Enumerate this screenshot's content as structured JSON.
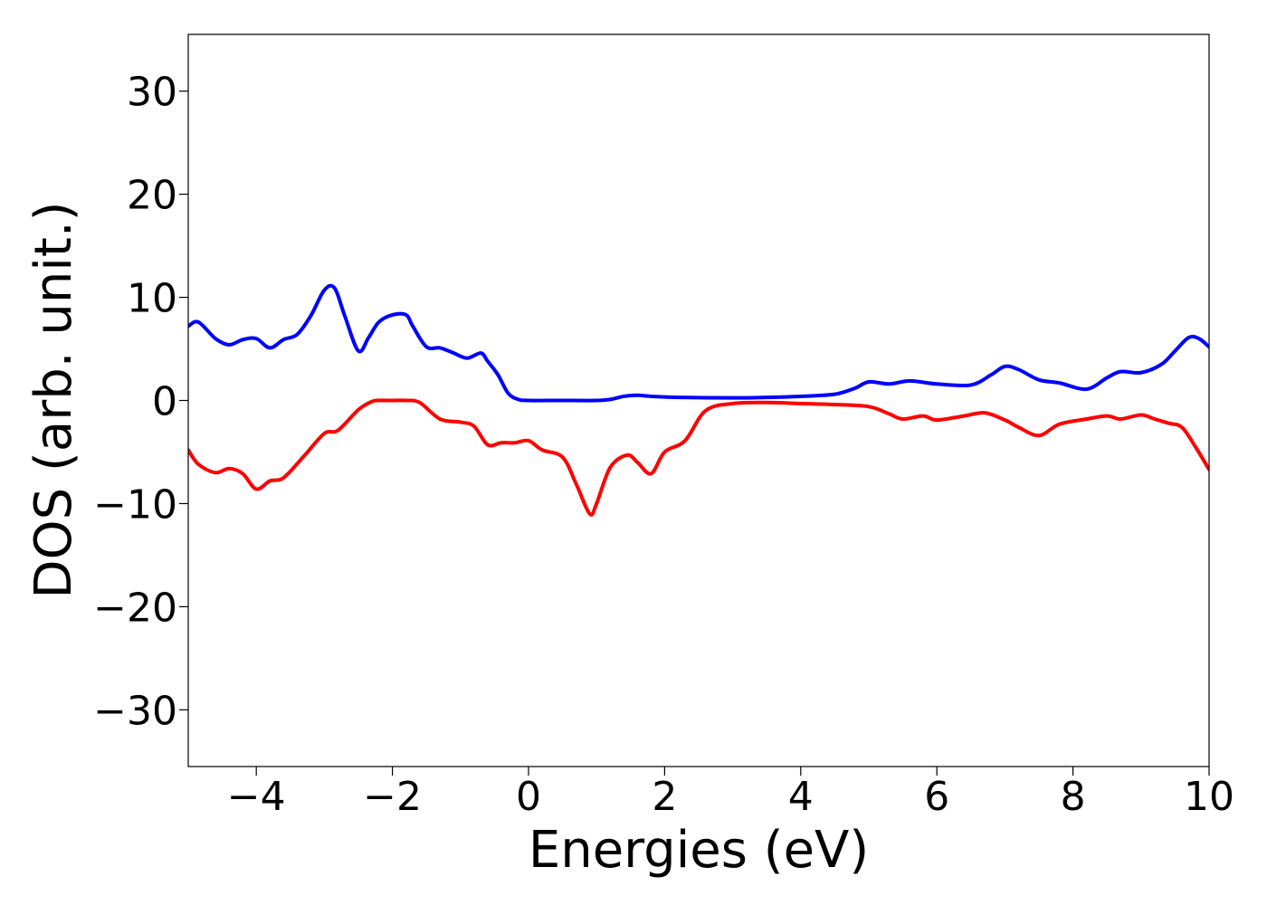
{
  "chart_data": {
    "type": "line",
    "title": "",
    "xlabel": "Energies (eV)",
    "ylabel": "DOS (arb. unit.)",
    "xlim": [
      -5,
      10
    ],
    "ylim": [
      -35.5,
      35.5
    ],
    "grid": false,
    "legend": "none",
    "x_ticks": [
      -4,
      -2,
      0,
      2,
      4,
      6,
      8,
      10
    ],
    "x_tick_labels": [
      "−4",
      "−2",
      "0",
      "2",
      "4",
      "6",
      "8",
      "10"
    ],
    "y_ticks": [
      30,
      20,
      10,
      0,
      -10,
      -20,
      -30
    ],
    "y_tick_labels": [
      "30",
      "20",
      "10",
      "0",
      "−10",
      "−20",
      "−30"
    ],
    "series": [
      {
        "color": "#0000ff",
        "x": [
          -5.0,
          -4.85,
          -4.6,
          -4.4,
          -4.2,
          -4.0,
          -3.8,
          -3.6,
          -3.4,
          -3.2,
          -3.0,
          -2.85,
          -2.7,
          -2.5,
          -2.35,
          -2.2,
          -2.0,
          -1.8,
          -1.7,
          -1.5,
          -1.3,
          -1.1,
          -0.9,
          -0.7,
          -0.6,
          -0.45,
          -0.3,
          -0.15,
          0.0,
          0.5,
          1.0,
          1.2,
          1.4,
          1.6,
          1.8,
          2.2,
          3.0,
          3.5,
          4.0,
          4.5,
          4.8,
          5.0,
          5.3,
          5.6,
          6.0,
          6.5,
          6.8,
          7.0,
          7.2,
          7.5,
          7.8,
          8.2,
          8.5,
          8.7,
          9.0,
          9.3,
          9.5,
          9.7,
          9.85,
          10.0
        ],
        "y": [
          7.2,
          7.6,
          6.0,
          5.4,
          5.9,
          6.0,
          5.1,
          5.9,
          6.4,
          8.2,
          10.7,
          10.9,
          8.2,
          4.8,
          6.1,
          7.6,
          8.3,
          8.3,
          7.2,
          5.2,
          5.1,
          4.6,
          4.1,
          4.6,
          3.8,
          2.5,
          0.7,
          0.1,
          0.0,
          0.0,
          0.0,
          0.1,
          0.4,
          0.5,
          0.4,
          0.3,
          0.25,
          0.3,
          0.4,
          0.6,
          1.2,
          1.8,
          1.6,
          1.9,
          1.6,
          1.5,
          2.5,
          3.3,
          3.0,
          2.0,
          1.7,
          1.1,
          2.2,
          2.8,
          2.7,
          3.5,
          4.8,
          6.1,
          6.0,
          5.2
        ]
      },
      {
        "color": "#ff0000",
        "x": [
          -5.0,
          -4.85,
          -4.6,
          -4.4,
          -4.2,
          -4.0,
          -3.8,
          -3.6,
          -3.3,
          -3.0,
          -2.8,
          -2.5,
          -2.3,
          -2.2,
          -2.0,
          -1.8,
          -1.6,
          -1.3,
          -1.0,
          -0.8,
          -0.6,
          -0.4,
          -0.2,
          0.0,
          0.2,
          0.5,
          0.7,
          0.9,
          1.0,
          1.2,
          1.45,
          1.6,
          1.8,
          2.0,
          2.3,
          2.6,
          3.0,
          3.5,
          4.0,
          4.5,
          5.0,
          5.3,
          5.5,
          5.8,
          6.0,
          6.4,
          6.7,
          7.0,
          7.2,
          7.5,
          7.8,
          8.2,
          8.5,
          8.7,
          9.0,
          9.2,
          9.4,
          9.6,
          9.8,
          10.0
        ],
        "y": [
          -4.8,
          -6.2,
          -7.0,
          -6.6,
          -7.1,
          -8.6,
          -7.8,
          -7.5,
          -5.4,
          -3.2,
          -2.9,
          -0.9,
          -0.1,
          0.0,
          0.0,
          0.0,
          -0.2,
          -1.8,
          -2.1,
          -2.5,
          -4.3,
          -4.1,
          -4.1,
          -3.9,
          -4.8,
          -5.5,
          -8.1,
          -11.0,
          -10.0,
          -6.5,
          -5.3,
          -6.0,
          -7.1,
          -5.0,
          -3.9,
          -1.0,
          -0.3,
          -0.2,
          -0.3,
          -0.4,
          -0.6,
          -1.3,
          -1.8,
          -1.5,
          -1.9,
          -1.5,
          -1.2,
          -1.9,
          -2.6,
          -3.4,
          -2.3,
          -1.8,
          -1.5,
          -1.8,
          -1.4,
          -1.8,
          -2.2,
          -2.6,
          -4.5,
          -6.7
        ]
      }
    ]
  }
}
